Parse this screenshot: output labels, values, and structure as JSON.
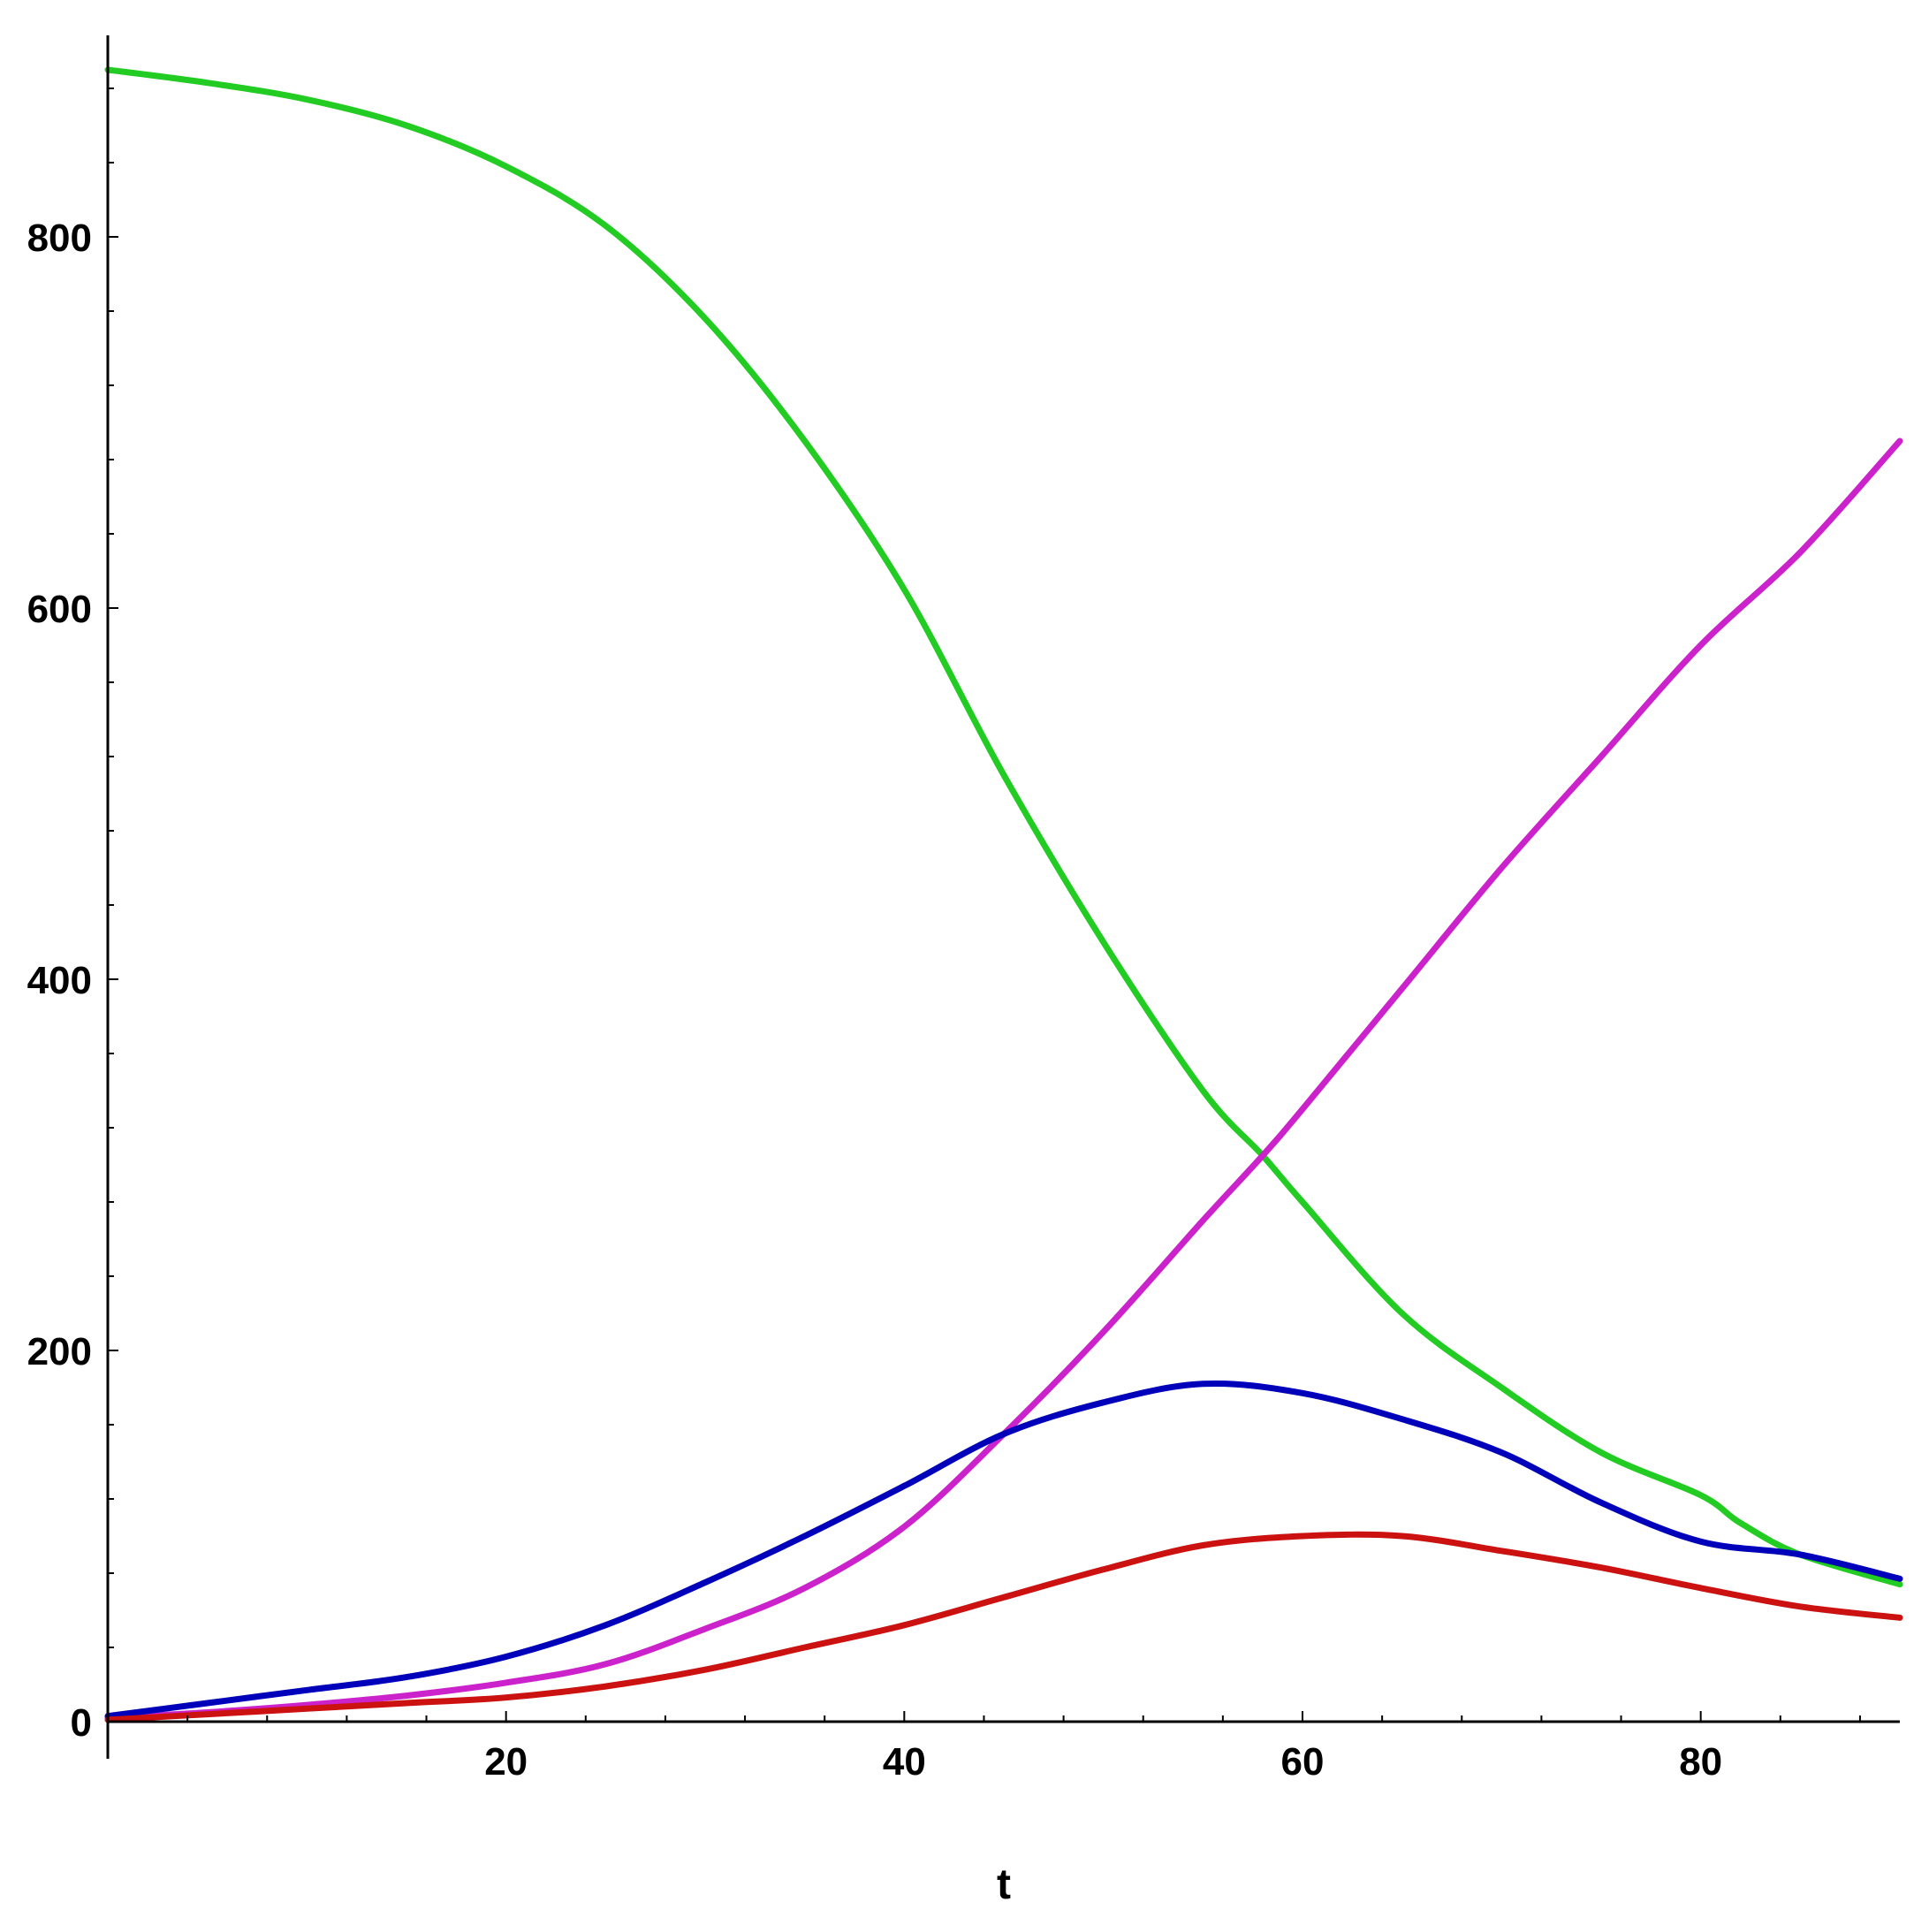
{
  "chart_data": {
    "type": "line",
    "title": "",
    "xlabel": "t",
    "ylabel": "",
    "xlim": [
      0,
      90
    ],
    "ylim": [
      0,
      890
    ],
    "x_major_ticks": [
      20,
      40,
      60,
      80
    ],
    "y_major_ticks": [
      0,
      200,
      400,
      600,
      800
    ],
    "x_minor_step": 4,
    "y_minor_step": 40,
    "grid": false,
    "series": [
      {
        "color": "#22cc22",
        "points": [
          [
            0,
            890
          ],
          [
            5,
            883
          ],
          [
            10,
            874
          ],
          [
            15,
            860
          ],
          [
            20,
            838
          ],
          [
            25,
            806
          ],
          [
            30,
            756
          ],
          [
            35,
            690
          ],
          [
            40,
            610
          ],
          [
            45,
            510
          ],
          [
            50,
            420
          ],
          [
            55,
            340
          ],
          [
            58,
            305
          ],
          [
            60,
            280
          ],
          [
            65,
            220
          ],
          [
            70,
            180
          ],
          [
            75,
            145
          ],
          [
            80,
            122
          ],
          [
            82,
            107
          ],
          [
            85,
            90
          ],
          [
            90,
            74
          ]
        ]
      },
      {
        "color": "#cc22cc",
        "points": [
          [
            0,
            2
          ],
          [
            5,
            5
          ],
          [
            10,
            9
          ],
          [
            15,
            14
          ],
          [
            20,
            21
          ],
          [
            25,
            31
          ],
          [
            30,
            50
          ],
          [
            35,
            72
          ],
          [
            40,
            105
          ],
          [
            45,
            155
          ],
          [
            50,
            210
          ],
          [
            55,
            270
          ],
          [
            58,
            305
          ],
          [
            60,
            330
          ],
          [
            65,
            395
          ],
          [
            70,
            460
          ],
          [
            75,
            520
          ],
          [
            80,
            580
          ],
          [
            85,
            630
          ],
          [
            90,
            690
          ]
        ]
      },
      {
        "color": "#0000bb",
        "points": [
          [
            0,
            3
          ],
          [
            5,
            10
          ],
          [
            10,
            17
          ],
          [
            15,
            24
          ],
          [
            20,
            35
          ],
          [
            25,
            52
          ],
          [
            30,
            75
          ],
          [
            35,
            100
          ],
          [
            40,
            127
          ],
          [
            45,
            155
          ],
          [
            50,
            172
          ],
          [
            55,
            182
          ],
          [
            60,
            177
          ],
          [
            65,
            163
          ],
          [
            70,
            145
          ],
          [
            75,
            118
          ],
          [
            80,
            97
          ],
          [
            85,
            90
          ],
          [
            90,
            77
          ]
        ]
      },
      {
        "color": "#cc1111",
        "points": [
          [
            0,
            1
          ],
          [
            5,
            4
          ],
          [
            10,
            7
          ],
          [
            15,
            10
          ],
          [
            20,
            13
          ],
          [
            25,
            19
          ],
          [
            30,
            28
          ],
          [
            35,
            40
          ],
          [
            40,
            52
          ],
          [
            45,
            67
          ],
          [
            50,
            82
          ],
          [
            55,
            95
          ],
          [
            60,
            100
          ],
          [
            65,
            100
          ],
          [
            70,
            92
          ],
          [
            75,
            83
          ],
          [
            80,
            72
          ],
          [
            85,
            62
          ],
          [
            90,
            56
          ]
        ]
      }
    ]
  }
}
